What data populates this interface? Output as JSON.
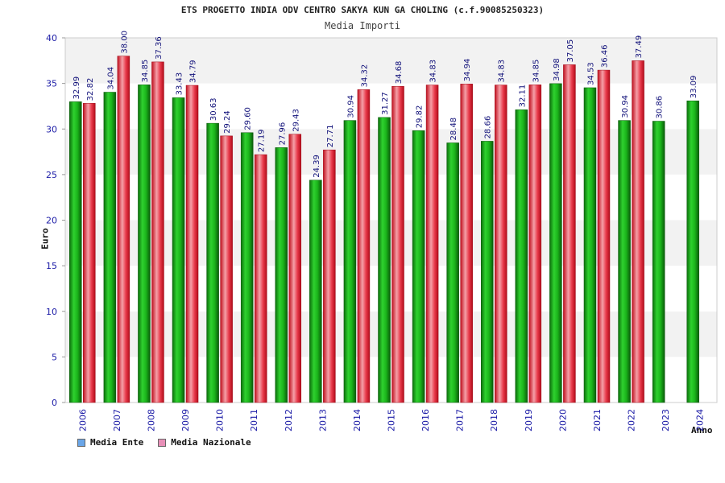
{
  "header": {
    "title": "ETS PROGETTO INDIA ODV CENTRO SAKYA KUN GA CHOLING (c.f.90085250323)",
    "subtitle": "Media Importi"
  },
  "chart_data": {
    "type": "bar",
    "title": "ETS PROGETTO INDIA ODV CENTRO SAKYA KUN GA CHOLING (c.f.90085250323)",
    "subtitle": "Media Importi",
    "xlabel": "Anno",
    "ylabel": "Euro",
    "ylim": [
      0,
      40
    ],
    "yticks": [
      0,
      5,
      10,
      15,
      20,
      25,
      30,
      35,
      40
    ],
    "grid": true,
    "legend_position": "bottom-left",
    "categories": [
      "2006",
      "2007",
      "2008",
      "2009",
      "2010",
      "2011",
      "2012",
      "2013",
      "2014",
      "2015",
      "2016",
      "2017",
      "2018",
      "2019",
      "2020",
      "2021",
      "2022",
      "2023",
      "2024"
    ],
    "series": [
      {
        "name": "Media Ente",
        "color": "#1aa81a",
        "legend_color": "#6aa6e8",
        "values": [
          32.99,
          34.04,
          34.85,
          33.43,
          30.63,
          29.6,
          27.96,
          24.39,
          30.94,
          31.27,
          29.82,
          28.48,
          28.66,
          32.11,
          34.98,
          34.53,
          30.94,
          30.86,
          33.09
        ],
        "labels": [
          "32.99",
          "34.04",
          "34.85",
          "33.43",
          "30.63",
          "29.60",
          "27.96",
          "24.39",
          "30.94",
          "31.27",
          "29.82",
          "28.48",
          "28.66",
          "32.11",
          "34.98",
          "34.53",
          "30.94",
          "30.86",
          "33.09"
        ]
      },
      {
        "name": "Media Nazionale",
        "color": "#e8293a",
        "legend_color": "#e890b8",
        "values": [
          32.82,
          38.0,
          37.36,
          34.79,
          29.24,
          27.19,
          29.43,
          27.71,
          34.32,
          34.68,
          34.83,
          34.94,
          34.83,
          34.85,
          37.05,
          36.46,
          37.49,
          null,
          null
        ],
        "labels": [
          "32.82",
          "38.00",
          "37.36",
          "34.79",
          "29.24",
          "27.19",
          "29.43",
          "27.71",
          "34.32",
          "34.68",
          "34.83",
          "34.94",
          "34.83",
          "34.85",
          "37.05",
          "36.46",
          "37.49",
          null,
          null
        ]
      }
    ]
  }
}
